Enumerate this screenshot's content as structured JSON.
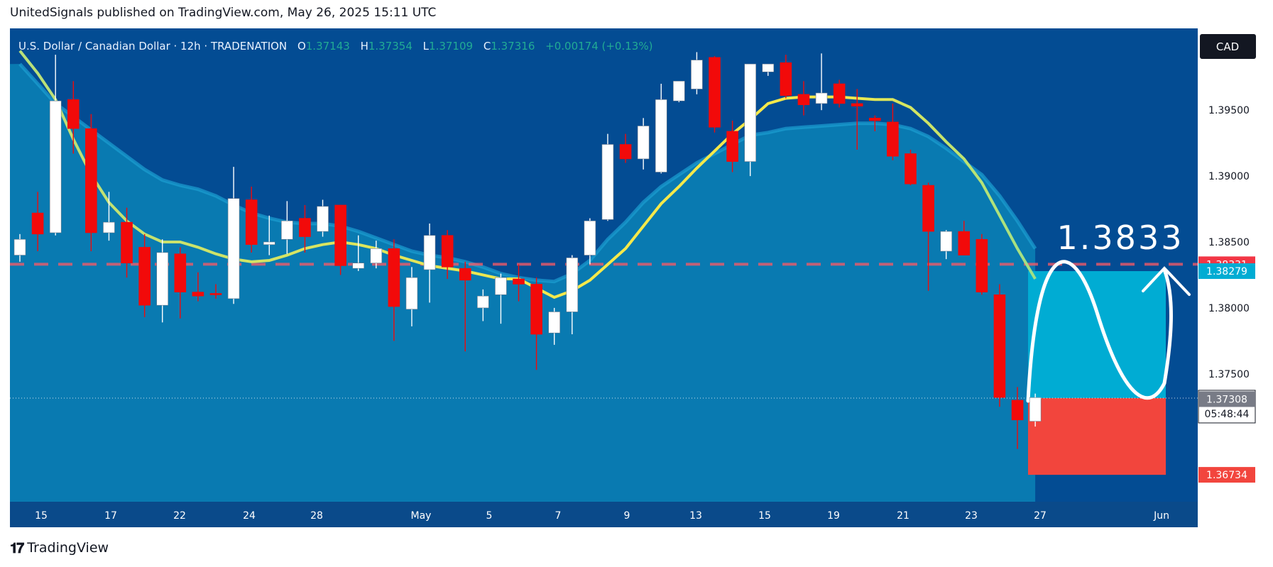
{
  "header": {
    "text": "UnitedSignals published on TradingView.com, May 26, 2025 15:11 UTC"
  },
  "symbol_info": {
    "name": "U.S. Dollar / Canadian Dollar · 12h · TRADENATION",
    "o_label": "O",
    "o_value": "1.37143",
    "h_label": "H",
    "h_value": "1.37354",
    "l_label": "L",
    "l_value": "1.37109",
    "c_label": "C",
    "c_value": "1.37316",
    "change": "+0.00174 (+0.13%)"
  },
  "currency_badge": "CAD",
  "target_annotation": "1.3833",
  "countdown": "05:48:44",
  "footer": {
    "brand": "TradingView"
  },
  "colors": {
    "background": "#034c93",
    "ma_band_fill": "#0a82b6",
    "bull": "#ffffff",
    "bear": "#f20a0a",
    "fast_ma": "#f5e94a",
    "target_zone": "#00acd3",
    "stop_zone": "#f2453d",
    "target_line": "#f23645"
  },
  "chart_data": {
    "type": "candlestick",
    "timeframe": "12h",
    "ylim": [
      1.3653,
      1.4012
    ],
    "y_ticks": [
      "1.37500",
      "1.38000",
      "1.38500",
      "1.39000",
      "1.39500"
    ],
    "x_ticks": [
      "15",
      "17",
      "22",
      "24",
      "28",
      "May",
      "5",
      "7",
      "9",
      "13",
      "15",
      "19",
      "21",
      "23",
      "27",
      "Jun"
    ],
    "candles": [
      {
        "o": 1.384,
        "h": 1.3856,
        "l": 1.3835,
        "c": 1.3852
      },
      {
        "o": 1.3872,
        "h": 1.3888,
        "l": 1.3843,
        "c": 1.3856
      },
      {
        "o": 1.3857,
        "h": 1.3992,
        "l": 1.3855,
        "c": 1.3957
      },
      {
        "o": 1.3958,
        "h": 1.3972,
        "l": 1.3917,
        "c": 1.3936
      },
      {
        "o": 1.3936,
        "h": 1.3947,
        "l": 1.3843,
        "c": 1.3857
      },
      {
        "o": 1.3857,
        "h": 1.3888,
        "l": 1.3851,
        "c": 1.3865
      },
      {
        "o": 1.3865,
        "h": 1.3876,
        "l": 1.3823,
        "c": 1.3834
      },
      {
        "o": 1.3846,
        "h": 1.3856,
        "l": 1.3793,
        "c": 1.3802
      },
      {
        "o": 1.3802,
        "h": 1.3852,
        "l": 1.3789,
        "c": 1.3842
      },
      {
        "o": 1.3841,
        "h": 1.3846,
        "l": 1.3792,
        "c": 1.3812
      },
      {
        "o": 1.3812,
        "h": 1.3827,
        "l": 1.3805,
        "c": 1.3809
      },
      {
        "o": 1.3811,
        "h": 1.3818,
        "l": 1.3807,
        "c": 1.381
      },
      {
        "o": 1.3807,
        "h": 1.3907,
        "l": 1.3803,
        "c": 1.3883
      },
      {
        "o": 1.3882,
        "h": 1.3892,
        "l": 1.3842,
        "c": 1.3848
      },
      {
        "o": 1.3848,
        "h": 1.387,
        "l": 1.384,
        "c": 1.385
      },
      {
        "o": 1.3852,
        "h": 1.3881,
        "l": 1.3841,
        "c": 1.3866
      },
      {
        "o": 1.3868,
        "h": 1.3878,
        "l": 1.3842,
        "c": 1.3854
      },
      {
        "o": 1.3858,
        "h": 1.3882,
        "l": 1.3854,
        "c": 1.3877
      },
      {
        "o": 1.3878,
        "h": 1.3878,
        "l": 1.3825,
        "c": 1.3832
      },
      {
        "o": 1.383,
        "h": 1.3855,
        "l": 1.3828,
        "c": 1.3834
      },
      {
        "o": 1.3834,
        "h": 1.3851,
        "l": 1.383,
        "c": 1.3845
      },
      {
        "o": 1.3845,
        "h": 1.3852,
        "l": 1.3775,
        "c": 1.3801
      },
      {
        "o": 1.3799,
        "h": 1.3831,
        "l": 1.3786,
        "c": 1.3823
      },
      {
        "o": 1.3829,
        "h": 1.3864,
        "l": 1.3804,
        "c": 1.3855
      },
      {
        "o": 1.3855,
        "h": 1.3859,
        "l": 1.3822,
        "c": 1.3831
      },
      {
        "o": 1.383,
        "h": 1.3835,
        "l": 1.3767,
        "c": 1.3821
      },
      {
        "o": 1.38,
        "h": 1.3814,
        "l": 1.379,
        "c": 1.3809
      },
      {
        "o": 1.381,
        "h": 1.3826,
        "l": 1.3788,
        "c": 1.3823
      },
      {
        "o": 1.3822,
        "h": 1.3833,
        "l": 1.3805,
        "c": 1.3818
      },
      {
        "o": 1.3818,
        "h": 1.3823,
        "l": 1.3753,
        "c": 1.378
      },
      {
        "o": 1.3781,
        "h": 1.38,
        "l": 1.3772,
        "c": 1.3797
      },
      {
        "o": 1.3797,
        "h": 1.384,
        "l": 1.378,
        "c": 1.3838
      },
      {
        "o": 1.384,
        "h": 1.3868,
        "l": 1.3833,
        "c": 1.3866
      },
      {
        "o": 1.3867,
        "h": 1.3932,
        "l": 1.3866,
        "c": 1.3924
      },
      {
        "o": 1.3924,
        "h": 1.3932,
        "l": 1.391,
        "c": 1.3913
      },
      {
        "o": 1.3913,
        "h": 1.3944,
        "l": 1.3905,
        "c": 1.3938
      },
      {
        "o": 1.3903,
        "h": 1.397,
        "l": 1.3902,
        "c": 1.3958
      },
      {
        "o": 1.3957,
        "h": 1.3972,
        "l": 1.3956,
        "c": 1.3972
      },
      {
        "o": 1.3966,
        "h": 1.3994,
        "l": 1.3962,
        "c": 1.3988
      },
      {
        "o": 1.399,
        "h": 1.3991,
        "l": 1.3933,
        "c": 1.3937
      },
      {
        "o": 1.3934,
        "h": 1.3942,
        "l": 1.3903,
        "c": 1.3911
      },
      {
        "o": 1.3911,
        "h": 1.3985,
        "l": 1.39,
        "c": 1.3985
      },
      {
        "o": 1.3979,
        "h": 1.3984,
        "l": 1.3976,
        "c": 1.3985
      },
      {
        "o": 1.3986,
        "h": 1.3992,
        "l": 1.3959,
        "c": 1.3961
      },
      {
        "o": 1.3962,
        "h": 1.3972,
        "l": 1.3946,
        "c": 1.3954
      },
      {
        "o": 1.3955,
        "h": 1.3993,
        "l": 1.395,
        "c": 1.3963
      },
      {
        "o": 1.397,
        "h": 1.3973,
        "l": 1.3952,
        "c": 1.3955
      },
      {
        "o": 1.3955,
        "h": 1.3966,
        "l": 1.392,
        "c": 1.3953
      },
      {
        "o": 1.3944,
        "h": 1.3946,
        "l": 1.3934,
        "c": 1.3942
      },
      {
        "o": 1.3941,
        "h": 1.3955,
        "l": 1.3912,
        "c": 1.3915
      },
      {
        "o": 1.3917,
        "h": 1.392,
        "l": 1.3893,
        "c": 1.3894
      },
      {
        "o": 1.3893,
        "h": 1.3895,
        "l": 1.3813,
        "c": 1.3858
      },
      {
        "o": 1.3843,
        "h": 1.3859,
        "l": 1.3837,
        "c": 1.3858
      },
      {
        "o": 1.3858,
        "h": 1.3866,
        "l": 1.3841,
        "c": 1.384
      },
      {
        "o": 1.3852,
        "h": 1.3856,
        "l": 1.381,
        "c": 1.3812
      },
      {
        "o": 1.381,
        "h": 1.3818,
        "l": 1.3725,
        "c": 1.3732
      },
      {
        "o": 1.373,
        "h": 1.374,
        "l": 1.3693,
        "c": 1.3715
      },
      {
        "o": 1.3714,
        "h": 1.3735,
        "l": 1.371,
        "c": 1.3732
      }
    ],
    "fast_ma": [
      1.3995,
      1.3978,
      1.3958,
      1.3928,
      1.3901,
      1.388,
      1.3866,
      1.3856,
      1.385,
      1.385,
      1.3846,
      1.3841,
      1.3837,
      1.3835,
      1.3836,
      1.384,
      1.3845,
      1.3848,
      1.385,
      1.3848,
      1.3845,
      1.384,
      1.3836,
      1.3832,
      1.383,
      1.3828,
      1.3825,
      1.3822,
      1.3822,
      1.3815,
      1.3808,
      1.3813,
      1.3821,
      1.3833,
      1.3845,
      1.3862,
      1.3879,
      1.3892,
      1.3906,
      1.3919,
      1.3932,
      1.3943,
      1.3955,
      1.3959,
      1.396,
      1.396,
      1.396,
      1.3959,
      1.3958,
      1.3958,
      1.3952,
      1.394,
      1.3926,
      1.3913,
      1.3895,
      1.387,
      1.3845,
      1.3822
    ],
    "ma_band_upper": [
      1.3985,
      1.397,
      1.3955,
      1.3945,
      1.3935,
      1.3925,
      1.3915,
      1.3905,
      1.3897,
      1.3893,
      1.389,
      1.3885,
      1.3878,
      1.3872,
      1.3868,
      1.3865,
      1.3864,
      1.3864,
      1.3862,
      1.3858,
      1.3853,
      1.3848,
      1.3843,
      1.384,
      1.3838,
      1.3835,
      1.3831,
      1.3826,
      1.3823,
      1.3821,
      1.382,
      1.3826,
      1.3836,
      1.3852,
      1.3865,
      1.388,
      1.3892,
      1.3901,
      1.391,
      1.3917,
      1.3924,
      1.3931,
      1.3933,
      1.3936,
      1.3937,
      1.3938,
      1.3939,
      1.394,
      1.394,
      1.3939,
      1.3936,
      1.393,
      1.3921,
      1.3911,
      1.3901,
      1.3885,
      1.3866,
      1.3845
    ],
    "ma_band_lower": [
      1.3653,
      1.3653
    ],
    "current_price": "1.37316",
    "price_labels": [
      {
        "value": "1.38331",
        "price": 1.38331,
        "color": "#f23645"
      },
      {
        "value": "1.38279",
        "price": 1.38279,
        "color": "#00acd3"
      },
      {
        "value": "1.37316",
        "price": 1.37316,
        "color": "#ffffff"
      },
      {
        "value": "1.37308",
        "price": 1.37308,
        "color": "#787b86"
      },
      {
        "value": "1.36734",
        "price": 1.36734,
        "color": "#f2453d"
      }
    ],
    "target_line": 1.38331,
    "long_position": {
      "entry": 1.37316,
      "target": 1.38279,
      "stop": 1.36734
    }
  }
}
